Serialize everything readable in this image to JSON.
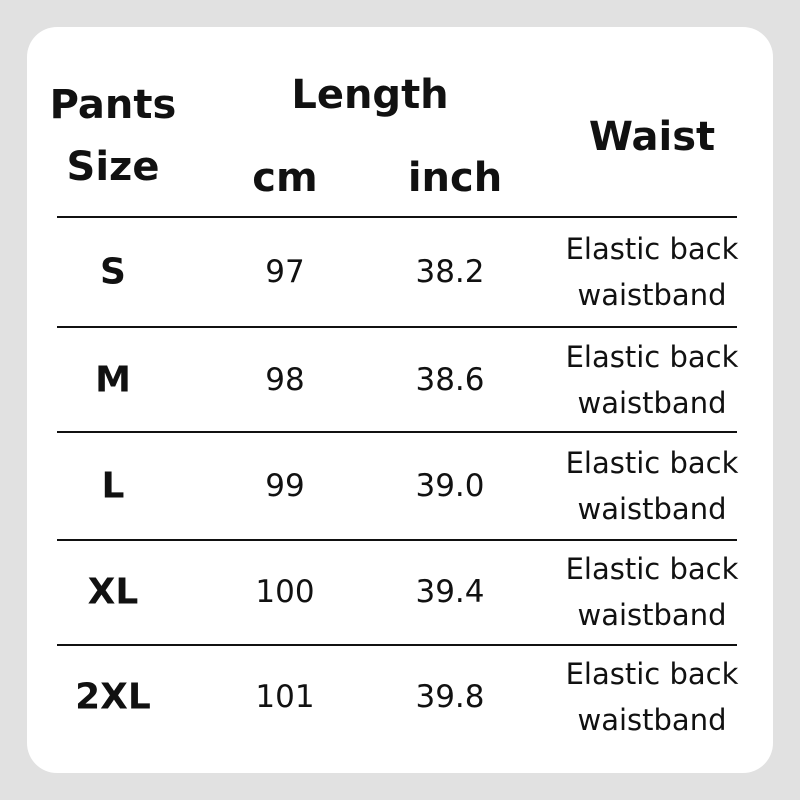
{
  "header": {
    "size_line1": "Pants",
    "size_line2": "Size",
    "length": "Length",
    "cm": "cm",
    "inch": "inch",
    "waist": "Waist"
  },
  "rows": [
    {
      "size": "S",
      "cm": "97",
      "inch": "38.2",
      "waist_line1": "Elastic back",
      "waist_line2": "waistband"
    },
    {
      "size": "M",
      "cm": "98",
      "inch": "38.6",
      "waist_line1": "Elastic back",
      "waist_line2": "waistband"
    },
    {
      "size": "L",
      "cm": "99",
      "inch": "39.0",
      "waist_line1": "Elastic back",
      "waist_line2": "waistband"
    },
    {
      "size": "XL",
      "cm": "100",
      "inch": "39.4",
      "waist_line1": "Elastic back",
      "waist_line2": "waistband"
    },
    {
      "size": "2XL",
      "cm": "101",
      "inch": "39.8",
      "waist_line1": "Elastic back",
      "waist_line2": "waistband"
    }
  ]
}
